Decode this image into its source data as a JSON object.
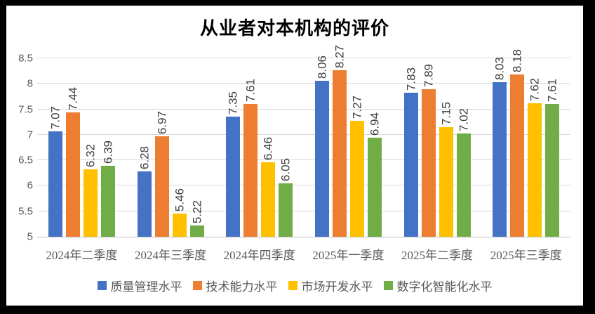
{
  "chart_data": {
    "type": "bar",
    "title": "从业者对本机构的评价",
    "categories": [
      "2024年二季度",
      "2024年三季度",
      "2024年四季度",
      "2025年一季度",
      "2025年二季度",
      "2025年三季度"
    ],
    "series": [
      {
        "name": "质量管理水平",
        "color": "#4472C4",
        "values": [
          7.07,
          6.28,
          7.35,
          8.06,
          7.83,
          8.03
        ]
      },
      {
        "name": "技术能力水平",
        "color": "#ED7D31",
        "values": [
          7.44,
          6.97,
          7.61,
          8.27,
          7.89,
          8.18
        ]
      },
      {
        "name": "市场开发水平",
        "color": "#FFC000",
        "values": [
          6.32,
          5.46,
          6.46,
          7.27,
          7.15,
          7.62
        ]
      },
      {
        "name": "数字化智能化水平",
        "color": "#70AD47",
        "values": [
          6.39,
          5.22,
          6.05,
          6.94,
          7.02,
          7.61
        ]
      }
    ],
    "ylim": [
      5,
      8.5
    ],
    "yticks": [
      {
        "value": 5,
        "label": "5"
      },
      {
        "value": 5.5,
        "label": "5.5"
      },
      {
        "value": 6,
        "label": "6"
      },
      {
        "value": 6.5,
        "label": "6.5"
      },
      {
        "value": 7,
        "label": "7"
      },
      {
        "value": 7.5,
        "label": "7.5"
      },
      {
        "value": 8,
        "label": "8"
      },
      {
        "value": 8.5,
        "label": "8.5"
      }
    ],
    "grid": true,
    "legend_position": "bottom",
    "data_label_rotation": -90,
    "colors": {
      "gridline": "#D9D9D9",
      "axis_line": "#BFBFBF",
      "axis_text": "#595959",
      "data_label": "#404040",
      "frame_border": "#000000",
      "background": "#FFFFFF"
    }
  }
}
